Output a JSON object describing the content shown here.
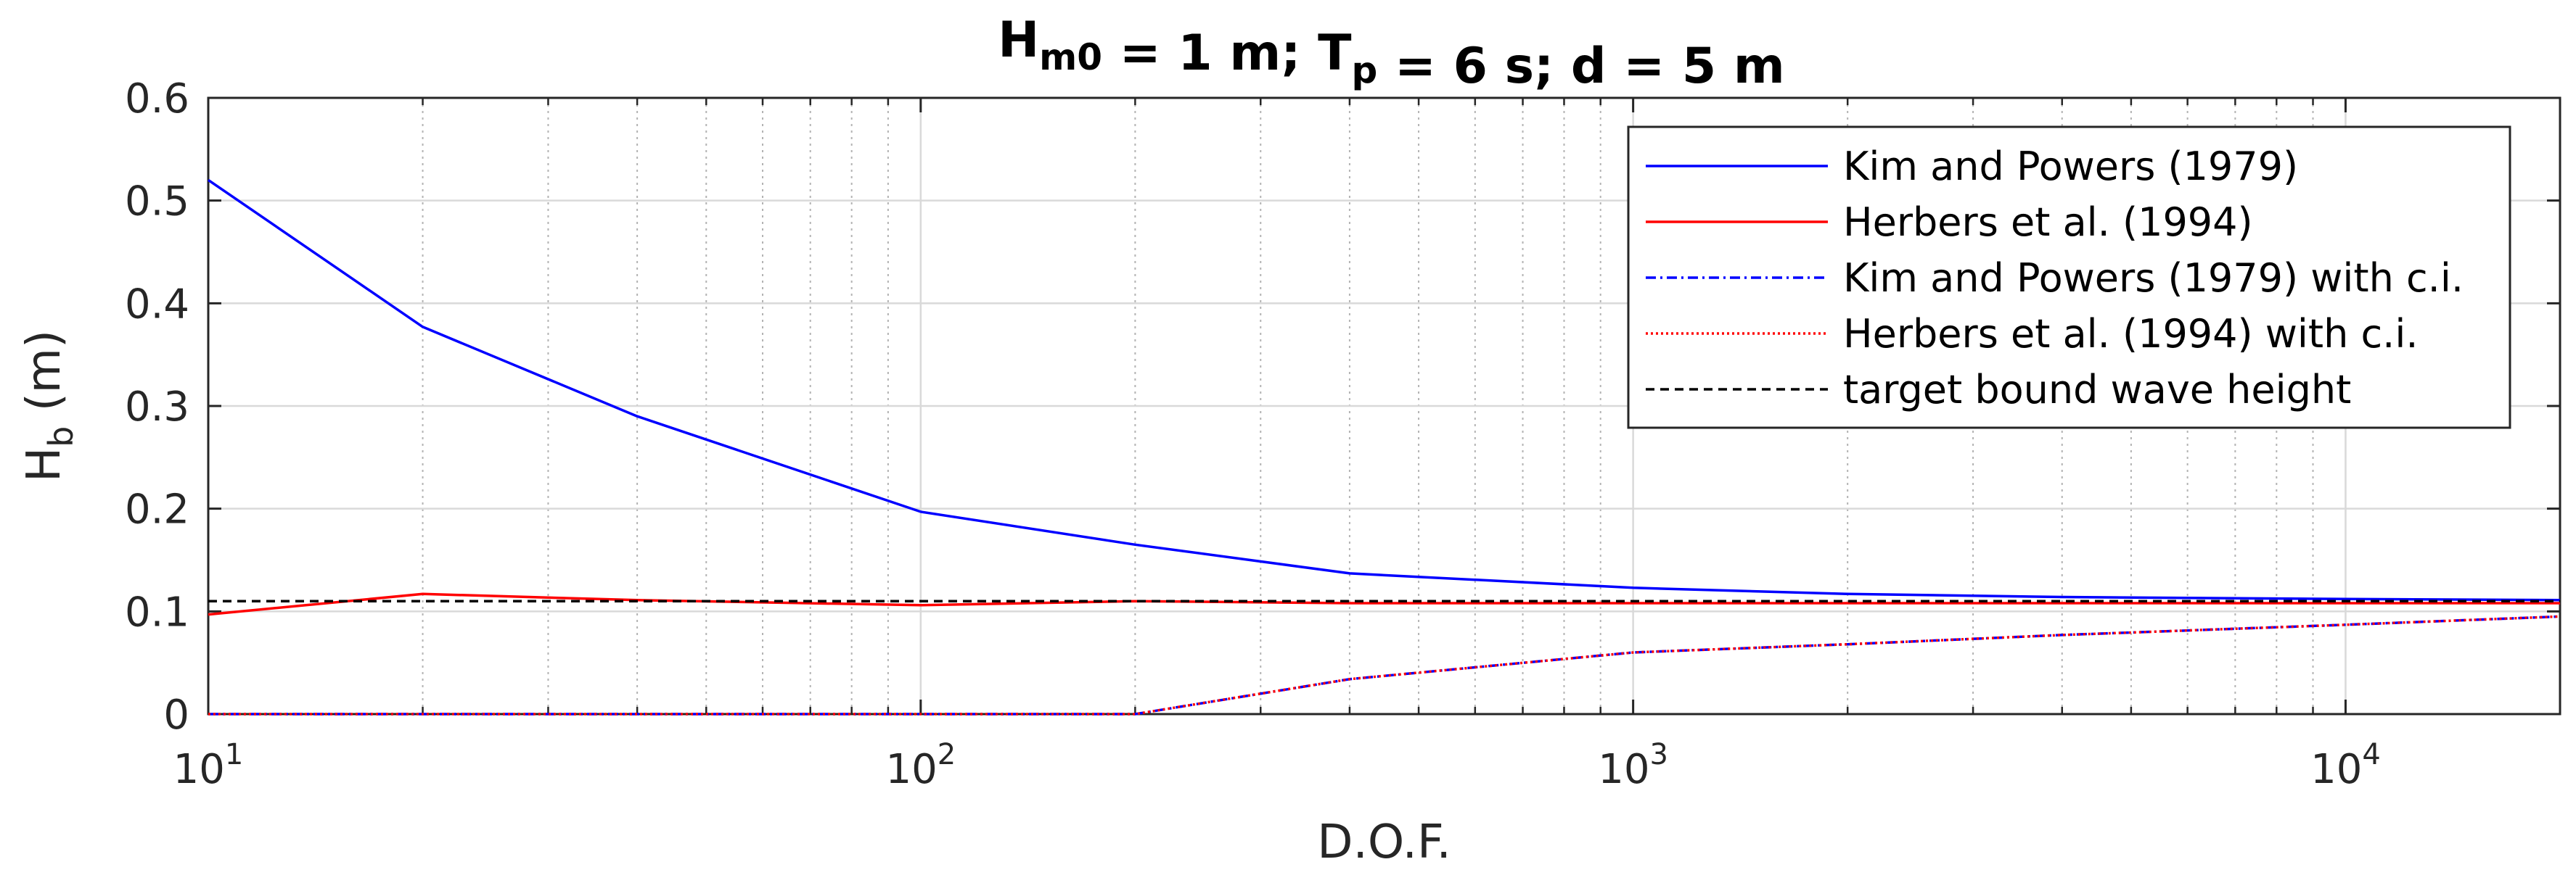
{
  "chart_data": {
    "type": "line",
    "title": {
      "parts": [
        {
          "text": "H",
          "sub": "m0"
        },
        {
          "text": " = 1 m; T",
          "sub": "p"
        },
        {
          "text": " = 6 s; d = 5 m",
          "sub": ""
        }
      ]
    },
    "xlabel": "D.O.F.",
    "ylabel": {
      "text": "H",
      "sub": "b",
      "after": " (m)"
    },
    "x_scale": "log",
    "xlim": [
      10,
      20000
    ],
    "ylim": [
      0,
      0.6
    ],
    "x_ticks": [
      {
        "value": 10,
        "base": "10",
        "exp": "1"
      },
      {
        "value": 100,
        "base": "10",
        "exp": "2"
      },
      {
        "value": 1000,
        "base": "10",
        "exp": "3"
      },
      {
        "value": 10000,
        "base": "10",
        "exp": "4"
      }
    ],
    "y_ticks": [
      {
        "value": 0,
        "label": "0"
      },
      {
        "value": 0.1,
        "label": "0.1"
      },
      {
        "value": 0.2,
        "label": "0.2"
      },
      {
        "value": 0.3,
        "label": "0.3"
      },
      {
        "value": 0.4,
        "label": "0.4"
      },
      {
        "value": 0.5,
        "label": "0.5"
      },
      {
        "value": 0.6,
        "label": "0.6"
      }
    ],
    "grid": "on (major and minor)",
    "legend_position": "top-right",
    "series": [
      {
        "name": "Kim and Powers (1979)",
        "color": "#0000ff",
        "style": "solid",
        "x": [
          10,
          20,
          40,
          100,
          200,
          400,
          1000,
          2000,
          4000,
          10000,
          20000
        ],
        "y": [
          0.52,
          0.377,
          0.29,
          0.197,
          0.165,
          0.137,
          0.123,
          0.117,
          0.114,
          0.112,
          0.111
        ]
      },
      {
        "name": "Herbers et al. (1994)",
        "color": "#ff0000",
        "style": "solid",
        "x": [
          10,
          20,
          40,
          100,
          200,
          400,
          1000,
          2000,
          4000,
          10000,
          20000
        ],
        "y": [
          0.097,
          0.117,
          0.111,
          0.106,
          0.11,
          0.108,
          0.108,
          0.108,
          0.108,
          0.108,
          0.108
        ]
      },
      {
        "name": "Kim and Powers (1979) with c.i.",
        "color": "#0000ff",
        "style": "dashdot",
        "x": [
          10,
          20,
          40,
          100,
          200,
          400,
          1000,
          2000,
          4000,
          10000,
          20000
        ],
        "y": [
          0,
          0,
          0,
          0,
          0,
          0.034,
          0.06,
          0.068,
          0.077,
          0.087,
          0.095
        ]
      },
      {
        "name": "Herbers et al. (1994) with c.i.",
        "color": "#ff0000",
        "style": "dotted",
        "x": [
          10,
          20,
          40,
          100,
          200,
          400,
          1000,
          2000,
          4000,
          10000,
          20000
        ],
        "y": [
          0,
          0,
          0,
          0,
          0,
          0.034,
          0.06,
          0.068,
          0.077,
          0.087,
          0.095
        ]
      },
      {
        "name": "target bound wave height",
        "color": "#000000",
        "style": "dashed",
        "x": [
          10,
          20000
        ],
        "y": [
          0.11,
          0.11
        ]
      }
    ]
  }
}
